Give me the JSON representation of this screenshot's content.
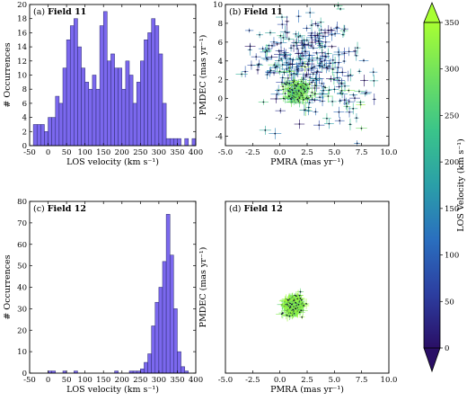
{
  "colormap": {
    "colors": [
      "#2a0f66",
      "#2c3ea0",
      "#2a6fbf",
      "#2a9fa8",
      "#3ac48a",
      "#6ee060",
      "#a8ff32"
    ],
    "vmin": 0,
    "vmax": 350,
    "ticks": [
      0,
      50,
      100,
      150,
      200,
      250,
      300,
      350
    ],
    "label": "LOS Velocity (km s⁻¹)"
  },
  "bar_color": "#7b68ee",
  "chart_data": [
    {
      "type": "bar",
      "panel": "a",
      "title_prefix": "(a) ",
      "title_bold": "Field 11",
      "xlabel": "LOS velocity (km s⁻¹)",
      "ylabel": "# Occurrences",
      "xlim": [
        -50,
        400
      ],
      "ylim": [
        0,
        20
      ],
      "xticks": [
        -50,
        0,
        50,
        100,
        150,
        200,
        250,
        300,
        350,
        400
      ],
      "yticks": [
        0,
        2,
        4,
        6,
        8,
        10,
        12,
        14,
        16,
        18,
        20
      ],
      "bin_start": -40,
      "bin_width": 10,
      "values": [
        3,
        3,
        3,
        2,
        4,
        4,
        7,
        6,
        11,
        15,
        17,
        18,
        14,
        11,
        9,
        8,
        10,
        8,
        17,
        19,
        12,
        13,
        11,
        11,
        8,
        12,
        10,
        6,
        9,
        12,
        15,
        16,
        18,
        17,
        13,
        6,
        1,
        1,
        1,
        1,
        0,
        1,
        0,
        1
      ],
      "grid": false
    },
    {
      "type": "scatter",
      "panel": "b",
      "title_prefix": "(b) ",
      "title_bold": "Field 11",
      "xlabel": "PMRA (mas yr⁻¹)",
      "ylabel": "PMDEC (mas yr⁻¹)",
      "xlim": [
        -5,
        10
      ],
      "ylim": [
        -5,
        10
      ],
      "xticks": [
        -5.0,
        -2.5,
        0.0,
        2.5,
        5.0,
        7.5,
        10.0
      ],
      "yticks": [
        -4,
        -2,
        0,
        2,
        4,
        6,
        8,
        10
      ],
      "clusters": [
        {
          "mu_x": 2.2,
          "mu_y": 4.5,
          "sd_x": 2.3,
          "sd_y": 2.3,
          "n": 230,
          "v_mu": 120,
          "v_sd": 70
        },
        {
          "mu_x": 1.6,
          "mu_y": 0.6,
          "sd_x": 0.55,
          "sd_y": 0.6,
          "n": 130,
          "v_mu": 300,
          "v_sd": 25
        },
        {
          "mu_x": 4.5,
          "mu_y": 0.5,
          "sd_x": 2.8,
          "sd_y": 2.0,
          "n": 70,
          "v_mu": 150,
          "v_sd": 100
        }
      ]
    },
    {
      "type": "bar",
      "panel": "c",
      "title_prefix": "(c) ",
      "title_bold": "Field 12",
      "xlabel": "LOS velocity (km s⁻¹)",
      "ylabel": "# Occurrences",
      "xlim": [
        -50,
        400
      ],
      "ylim": [
        0,
        80
      ],
      "xticks": [
        -50,
        0,
        50,
        100,
        150,
        200,
        250,
        300,
        350,
        400
      ],
      "yticks": [
        0,
        10,
        20,
        30,
        40,
        50,
        60,
        70,
        80
      ],
      "bin_start": -20,
      "bin_width": 10,
      "values": [
        0,
        0,
        1,
        1,
        0,
        0,
        1,
        0,
        0,
        1,
        0,
        0,
        0,
        0,
        0,
        0,
        0,
        0,
        0,
        0,
        1,
        0,
        0,
        0,
        1,
        1,
        1,
        2,
        5,
        9,
        22,
        33,
        40,
        52,
        74,
        55,
        30,
        10,
        3,
        1
      ],
      "grid": false
    },
    {
      "type": "scatter",
      "panel": "d",
      "title_prefix": "(d) ",
      "title_bold": "Field 12",
      "xlabel": "PMRA (mas yr⁻¹)",
      "ylabel": "PMDEC (mas yr⁻¹)",
      "xlim": [
        -5,
        10
      ],
      "ylim": [
        -5,
        10
      ],
      "xticks": [
        -5.0,
        -2.5,
        0.0,
        2.5,
        5.0,
        7.5,
        10.0
      ],
      "yticks": [],
      "clusters": [
        {
          "mu_x": 1.3,
          "mu_y": 0.9,
          "sd_x": 0.35,
          "sd_y": 0.35,
          "n": 400,
          "v_mu": 320,
          "v_sd": 20
        }
      ]
    }
  ]
}
